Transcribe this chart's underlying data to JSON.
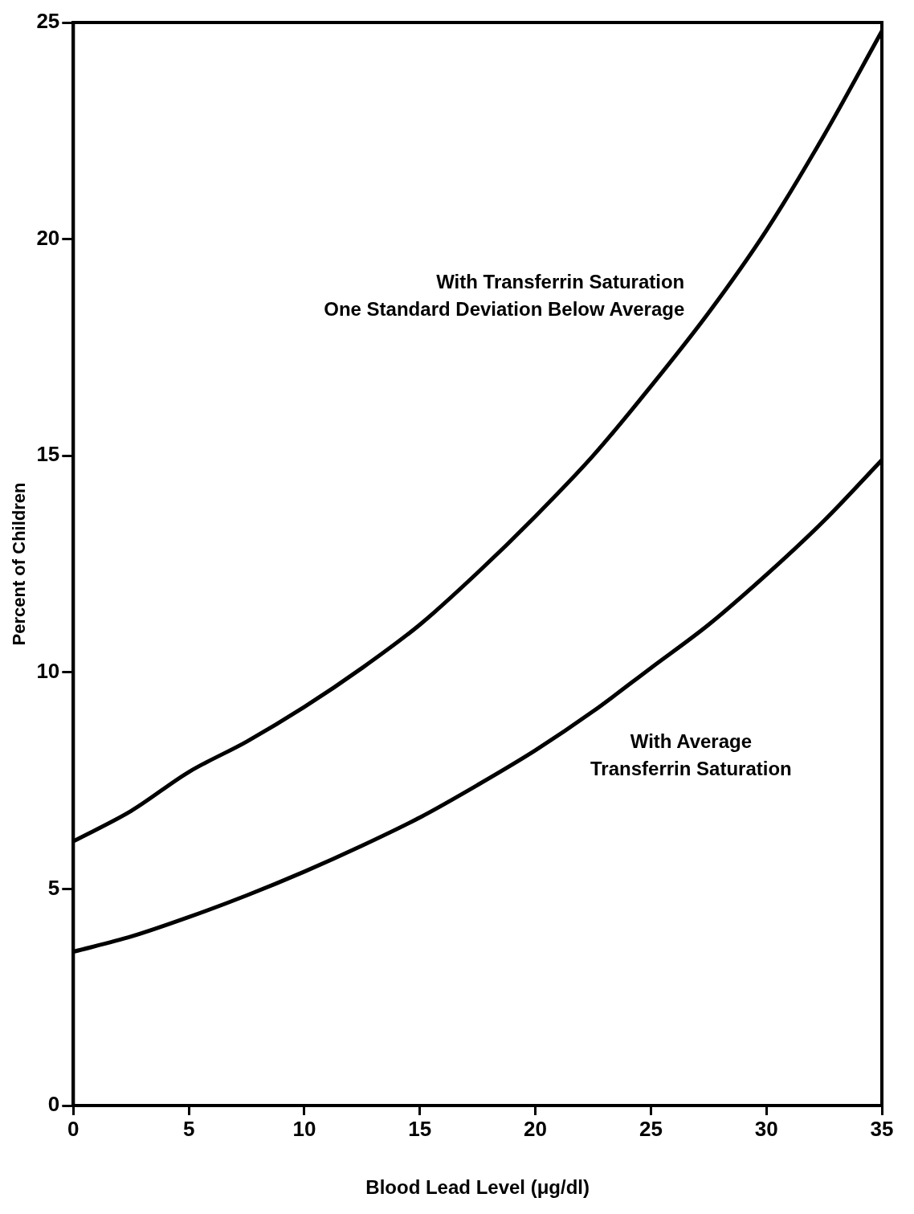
{
  "chart_data": {
    "type": "line",
    "xlabel": "Blood Lead Level (μg/dl)",
    "ylabel": "Percent of Children",
    "x": [
      0,
      2.5,
      5,
      7.5,
      10,
      12.5,
      15,
      17.5,
      20,
      22.5,
      25,
      27.5,
      30,
      32.5,
      35
    ],
    "series": [
      {
        "name": "With Transferrin Saturation\nOne Standard Deviation Below Average",
        "color": "#000000",
        "values": [
          6.1,
          6.8,
          7.7,
          8.4,
          9.2,
          10.1,
          11.1,
          12.3,
          13.6,
          15.0,
          16.6,
          18.3,
          20.2,
          22.4,
          24.8
        ]
      },
      {
        "name": "With Average\nTransferrin Saturation",
        "color": "#000000",
        "values": [
          3.55,
          3.9,
          4.35,
          4.85,
          5.4,
          6.0,
          6.65,
          7.4,
          8.2,
          9.1,
          10.1,
          11.1,
          12.25,
          13.5,
          14.9
        ]
      }
    ],
    "xlim": [
      0,
      35
    ],
    "xticks": [
      0,
      5,
      10,
      15,
      20,
      25,
      30,
      35
    ],
    "ylim": [
      0,
      25
    ],
    "yticks": [
      0,
      5,
      10,
      15,
      20,
      25
    ],
    "grid": false,
    "legend": false,
    "marker": "none",
    "line_style": "solid"
  }
}
